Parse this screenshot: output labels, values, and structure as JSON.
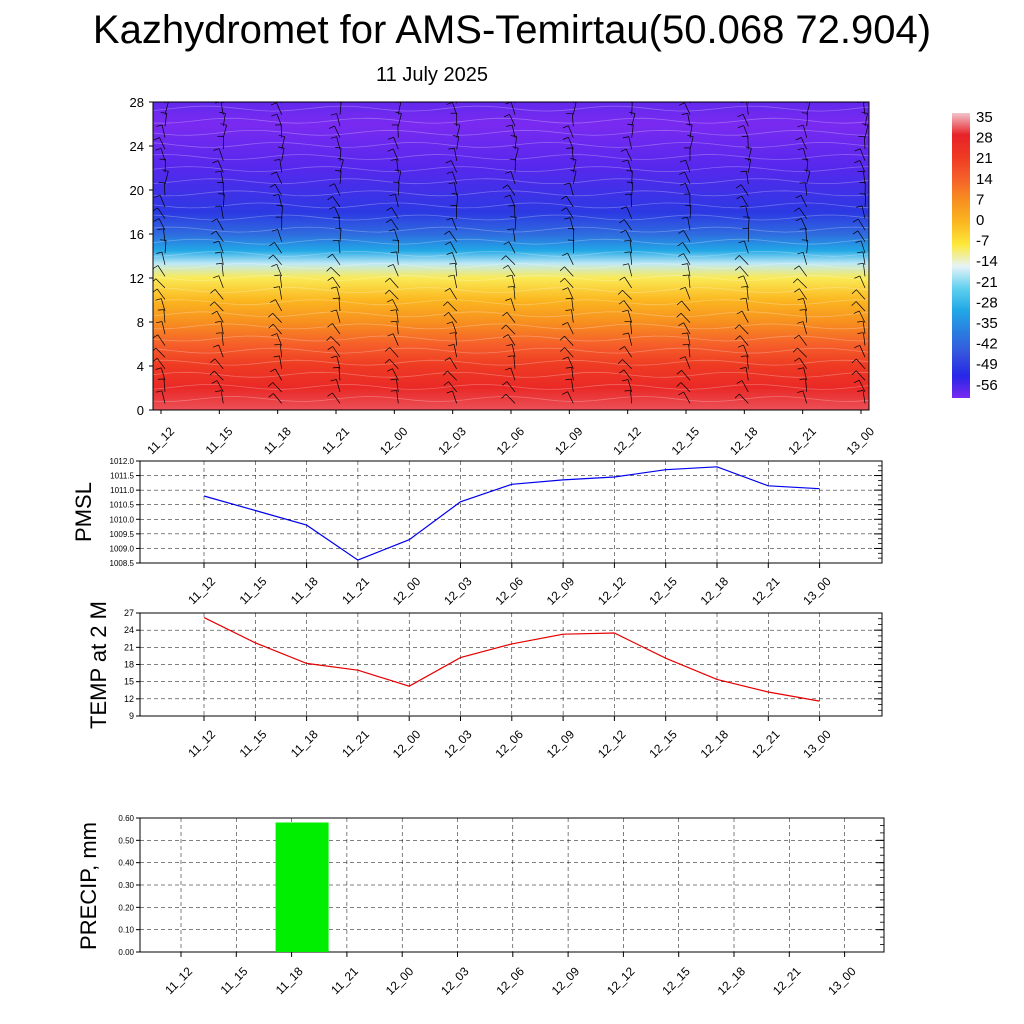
{
  "header": {
    "title": "Kazhydromet for AMS-Temirtau(50.068 72.904)",
    "date": "11 July 2025"
  },
  "chart_data": [
    {
      "type": "heatmap",
      "name": "cross-section",
      "x_ticks": [
        "11_12",
        "11_15",
        "11_18",
        "11_21",
        "12_00",
        "12_03",
        "12_06",
        "12_09",
        "12_12",
        "12_15",
        "12_18",
        "12_21",
        "13_00"
      ],
      "y_ticks": [
        "0",
        "4",
        "8",
        "12",
        "16",
        "20",
        "24",
        "28"
      ],
      "ylim": [
        0,
        28
      ],
      "temperature_profile": [
        {
          "level": 0,
          "value": 30
        },
        {
          "level": 2,
          "value": 26
        },
        {
          "level": 4,
          "value": 21
        },
        {
          "level": 6,
          "value": 14
        },
        {
          "level": 8,
          "value": 7
        },
        {
          "level": 10,
          "value": 0
        },
        {
          "level": 12,
          "value": -8
        },
        {
          "level": 13.3,
          "value": -16
        },
        {
          "level": 14.5,
          "value": -28
        },
        {
          "level": 16,
          "value": -38
        },
        {
          "level": 18,
          "value": -46
        },
        {
          "level": 22,
          "value": -53
        },
        {
          "level": 26,
          "value": -56
        },
        {
          "level": 28,
          "value": -54
        }
      ],
      "colorbar": {
        "labels": [
          "35",
          "28",
          "21",
          "14",
          "7",
          "0",
          "-7",
          "-14",
          "-21",
          "-28",
          "-35",
          "-42",
          "-49",
          "-56"
        ],
        "colors": [
          "#f2c4cc",
          "#e82229",
          "#ee3a23",
          "#f6602a",
          "#f7901f",
          "#fbb720",
          "#fde93a",
          "#e6f3f8",
          "#5fd0ee",
          "#21a8e6",
          "#2b7de0",
          "#3553dd",
          "#2626e8",
          "#7a2af0"
        ]
      },
      "grid": false
    },
    {
      "type": "line",
      "name": "pmsl",
      "ylabel": "PMSL",
      "categories": [
        "11_12",
        "11_15",
        "11_18",
        "11_21",
        "12_00",
        "12_03",
        "12_06",
        "12_09",
        "12_12",
        "12_15",
        "12_18",
        "12_21",
        "13_00"
      ],
      "values": [
        1010.8,
        1010.3,
        1009.8,
        1008.6,
        1009.3,
        1010.6,
        1011.2,
        1011.35,
        1011.45,
        1011.7,
        1011.8,
        1011.15,
        1011.05
      ],
      "y_ticks": [
        "1008.5",
        "1009.0",
        "1009.5",
        "1010.0",
        "1010.5",
        "1011.0",
        "1011.5",
        "1012.0"
      ],
      "ylim": [
        1008.5,
        1012.0
      ],
      "color": "#0000ee",
      "grid": true
    },
    {
      "type": "line",
      "name": "temp",
      "ylabel": "TEMP at 2 M",
      "categories": [
        "11_12",
        "11_15",
        "11_18",
        "11_21",
        "12_00",
        "12_03",
        "12_06",
        "12_09",
        "12_12",
        "12_15",
        "12_18",
        "12_21",
        "13_00"
      ],
      "values": [
        26.2,
        21.8,
        18.2,
        17.0,
        14.2,
        19.2,
        21.6,
        23.3,
        23.5,
        19.1,
        15.4,
        13.2,
        11.6
      ],
      "y_ticks": [
        "9",
        "12",
        "15",
        "18",
        "21",
        "24",
        "27"
      ],
      "ylim": [
        9,
        27
      ],
      "color": "#e60000",
      "grid": true
    },
    {
      "type": "bar",
      "name": "precip",
      "ylabel": "PRECIP, mm",
      "categories": [
        "11_12",
        "11_15",
        "11_18",
        "11_21",
        "12_00",
        "12_03",
        "12_06",
        "12_09",
        "12_12",
        "12_15",
        "12_18",
        "12_21",
        "13_00"
      ],
      "values": [
        0,
        0,
        0.58,
        0,
        0,
        0,
        0,
        0,
        0,
        0,
        0,
        0,
        0
      ],
      "y_ticks": [
        "0.00",
        "0.10",
        "0.20",
        "0.30",
        "0.40",
        "0.50",
        "0.60"
      ],
      "ylim": [
        0,
        0.6
      ],
      "color": "#00ee00",
      "grid": true
    }
  ]
}
